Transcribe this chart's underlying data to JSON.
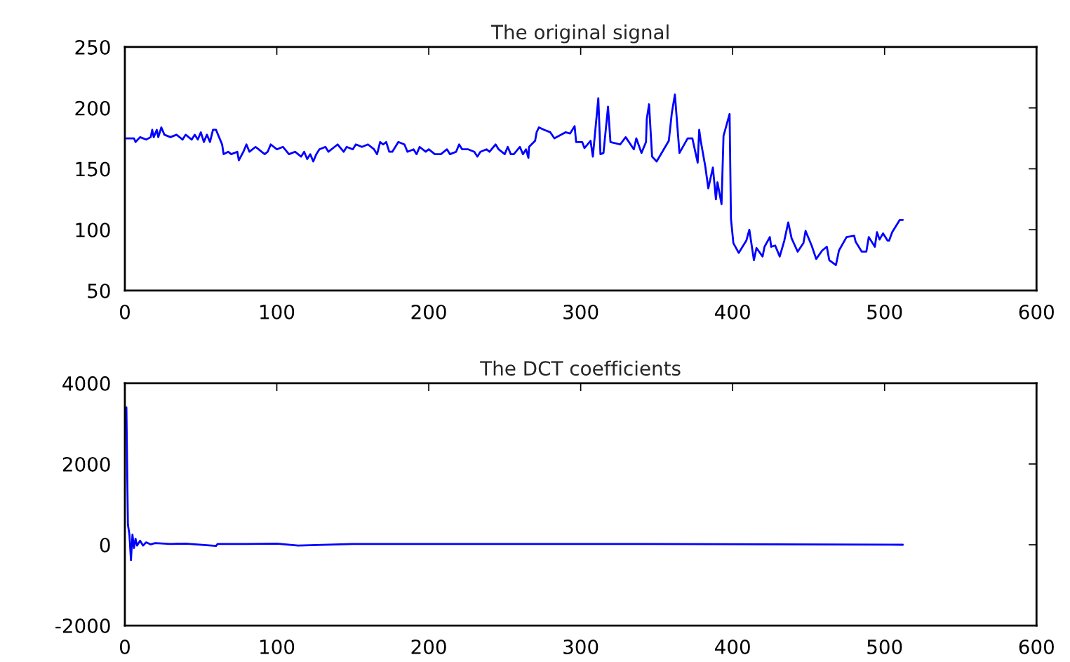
{
  "chart_data": [
    {
      "type": "line",
      "title": "The original signal",
      "series": [
        {
          "color": "#0000ff",
          "x": [
            1,
            6,
            7,
            10,
            14,
            17,
            18,
            19,
            21,
            22,
            24,
            26,
            30,
            34,
            38,
            40,
            44,
            46,
            48,
            50,
            52,
            54,
            56,
            58,
            60,
            62,
            64,
            65,
            68,
            70,
            74,
            75,
            78,
            80,
            82,
            86,
            88,
            92,
            94,
            96,
            100,
            104,
            108,
            112,
            116,
            118,
            120,
            122,
            124,
            126,
            128,
            132,
            134,
            138,
            140,
            144,
            146,
            150,
            152,
            156,
            160,
            164,
            166,
            168,
            170,
            172,
            174,
            176,
            180,
            184,
            186,
            190,
            192,
            194,
            198,
            200,
            204,
            208,
            212,
            214,
            218,
            220,
            222,
            226,
            230,
            232,
            234,
            238,
            240,
            244,
            246,
            250,
            252,
            254,
            256,
            260,
            262,
            264,
            265.6,
            266,
            270,
            271,
            272.5,
            276,
            280,
            282.7,
            290,
            293,
            296,
            297,
            301,
            302.5,
            306.5,
            308,
            311.6,
            313,
            315,
            318,
            319.6,
            326,
            329.6,
            335,
            336.6,
            340,
            343,
            343.5,
            345,
            347,
            350,
            358,
            360,
            362,
            365,
            370.4,
            373.5,
            377,
            378,
            379,
            382,
            384,
            387,
            389,
            390,
            392.7,
            394,
            398,
            398.9,
            400.5,
            404,
            409,
            411,
            414,
            415.7,
            419.7,
            421,
            424.5,
            425.4,
            428,
            431,
            434,
            436.6,
            438.8,
            442.8,
            446.6,
            448,
            452,
            455,
            459,
            462,
            463.6,
            468,
            470,
            475,
            480,
            481,
            485,
            488,
            489.6,
            493.6,
            495,
            496.7,
            499,
            502,
            503,
            505,
            510,
            512
          ],
          "values": [
            175,
            175,
            172,
            176,
            174,
            176,
            182,
            176,
            182,
            176,
            184,
            178,
            176,
            178,
            174,
            178,
            174,
            178,
            174,
            180,
            172,
            178,
            172,
            182,
            182,
            176,
            170,
            162,
            164,
            162,
            164,
            157,
            164,
            170,
            164,
            168,
            166,
            162,
            164,
            170,
            166,
            168,
            162,
            164,
            160,
            164,
            158,
            162,
            156,
            162,
            166,
            168,
            164,
            168,
            170,
            164,
            168,
            166,
            170,
            168,
            170,
            166,
            162,
            172,
            170,
            172,
            164,
            164,
            172,
            170,
            164,
            166,
            162,
            168,
            164,
            166,
            162,
            162,
            166,
            162,
            164,
            170,
            166,
            166,
            164,
            160,
            164,
            166,
            164,
            170,
            166,
            162,
            168,
            162,
            162,
            168,
            162,
            166,
            159,
            168,
            173,
            180,
            184,
            182,
            180,
            175,
            180,
            179,
            185,
            172,
            172,
            167,
            173,
            160,
            208,
            162,
            163,
            201,
            172,
            170,
            176,
            166,
            175,
            163,
            172,
            191,
            203,
            160,
            156,
            173,
            196,
            211,
            163,
            175,
            175,
            155,
            182,
            173,
            152,
            134,
            151,
            125,
            139,
            121,
            177,
            195,
            109,
            89,
            81,
            91,
            100,
            75,
            85,
            78,
            86,
            94,
            86,
            87,
            78,
            91,
            106,
            93,
            82,
            89,
            99,
            87,
            76,
            83,
            86,
            75,
            71,
            83,
            94,
            95,
            90,
            82,
            82,
            94,
            86,
            98,
            92,
            97,
            91,
            91,
            98,
            108,
            108
          ]
        }
      ],
      "xlim": [
        0,
        600
      ],
      "xticks": [
        0,
        100,
        200,
        300,
        400,
        500,
        600
      ],
      "ylim": [
        50,
        250
      ],
      "yticks": [
        50,
        100,
        150,
        200,
        250
      ],
      "grid": false
    },
    {
      "type": "line",
      "title": "The DCT coefficients",
      "series": [
        {
          "color": "#0000ff",
          "x": [
            1,
            2,
            3,
            4,
            5,
            6,
            7,
            8,
            10,
            12,
            14,
            17,
            20,
            30,
            40,
            60,
            61,
            80,
            100,
            114,
            150,
            200,
            205,
            230,
            288,
            340,
            512
          ],
          "values": [
            3400,
            500,
            250,
            -380,
            250,
            -80,
            150,
            -20,
            100,
            -20,
            60,
            10,
            40,
            20,
            30,
            -30,
            20,
            20,
            30,
            -20,
            20,
            20,
            20,
            20,
            20,
            20,
            0
          ]
        }
      ],
      "xlim": [
        0,
        600
      ],
      "xticks": [
        0,
        100,
        200,
        300,
        400,
        500,
        600
      ],
      "ylim": [
        -2000,
        4000
      ],
      "yticks": [
        -2000,
        0,
        2000,
        4000
      ],
      "grid": false
    }
  ]
}
